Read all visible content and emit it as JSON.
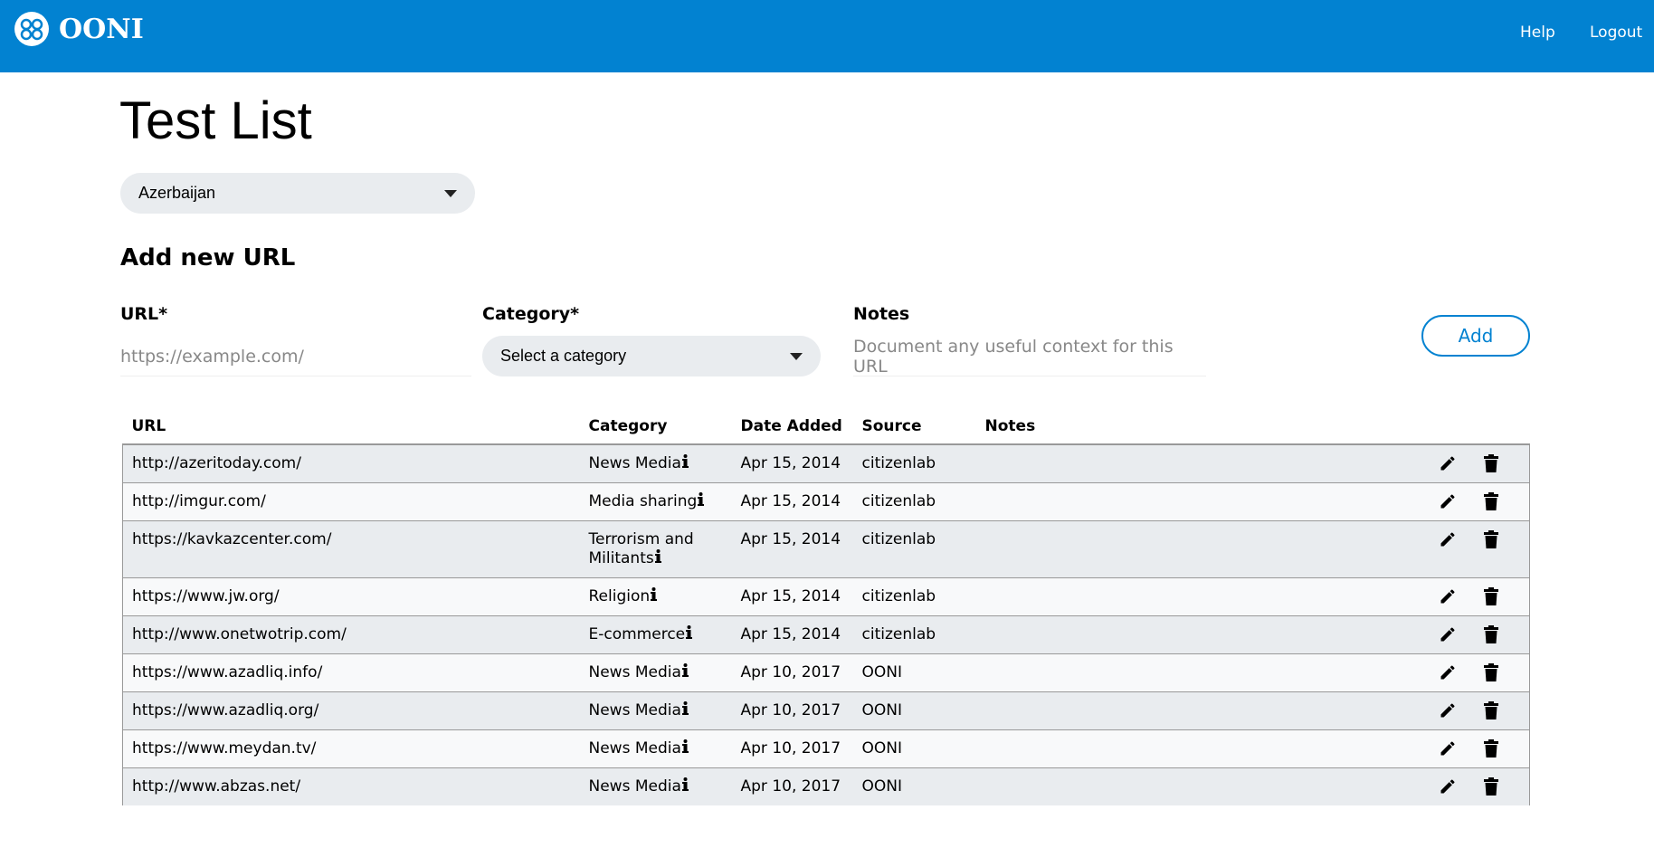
{
  "header": {
    "logo": "OONI",
    "nav": [
      "Help",
      "Logout"
    ]
  },
  "title": "Test List",
  "country_select": "Azerbaijan",
  "add_form": {
    "heading": "Add new URL",
    "fields": [
      {
        "label": "URL*",
        "placeholder": "https://example.com/"
      },
      {
        "label": "Category*",
        "placeholder": "Select a category"
      },
      {
        "label": "Notes",
        "placeholder": "Document any useful context for this URL"
      }
    ],
    "button": "Add"
  },
  "table": {
    "headers": [
      "URL",
      "Category",
      "Date Added",
      "Source",
      "Notes"
    ],
    "rows": [
      [
        "http://azeritoday.com/",
        "News Media",
        "Apr 15, 2014",
        "citizenlab"
      ],
      [
        "http://imgur.com/",
        "Media sharing",
        "Apr 15, 2014",
        "citizenlab"
      ],
      [
        "https://kavkazcenter.com/",
        "Terrorism and Militants",
        "Apr 15, 2014",
        "citizenlab"
      ],
      [
        "https://www.jw.org/",
        "Religion",
        "Apr 15, 2014",
        "citizenlab"
      ],
      [
        "http://www.onetwotrip.com/",
        "E-commerce",
        "Apr 15, 2014",
        "citizenlab"
      ],
      [
        "https://www.azadliq.info/",
        "News Media",
        "Apr 10, 2017",
        "OONI"
      ],
      [
        "https://www.azadliq.org/",
        "News Media",
        "Apr 10, 2017",
        "OONI"
      ],
      [
        "https://www.meydan.tv/",
        "News Media",
        "Apr 10, 2017",
        "OONI"
      ],
      [
        "http://www.abzas.net/",
        "News Media",
        "Apr 10, 2017",
        "OONI"
      ]
    ]
  }
}
